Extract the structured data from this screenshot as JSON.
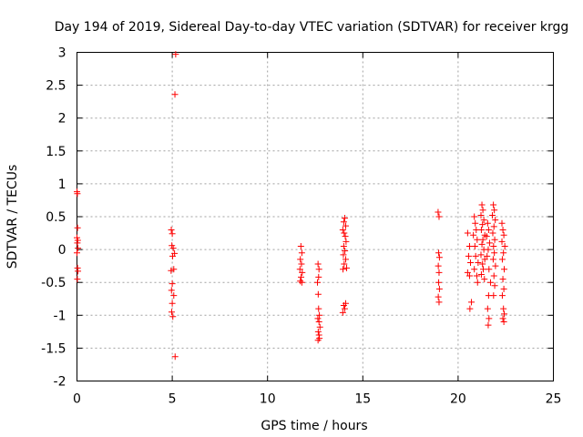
{
  "chart_data": {
    "type": "scatter",
    "title": "Day 194 of 2019, Sidereal Day-to-day VTEC variation (SDTVAR) for receiver krgg",
    "xlabel": "GPS time / hours",
    "ylabel": "SDTVAR / TECUs",
    "xlim": [
      0,
      25
    ],
    "ylim": [
      -2,
      3
    ],
    "xticks": [
      0,
      5,
      10,
      15,
      20,
      25
    ],
    "yticks": [
      -2,
      -1.5,
      -1,
      -0.5,
      0,
      0.5,
      1,
      1.5,
      2,
      2.5,
      3
    ],
    "xtick_labels": [
      "0",
      "5",
      "10",
      "15",
      "20",
      "25"
    ],
    "ytick_labels": [
      "-2",
      "-1.5",
      "-1",
      "-0.5",
      "0",
      "0.5",
      "1",
      "1.5",
      "2",
      "2.5",
      "3"
    ],
    "grid": true,
    "marker": "+",
    "color": "#ff0000",
    "series": [
      {
        "name": "SDTVAR",
        "points": [
          [
            0.0,
            0.88
          ],
          [
            0.02,
            0.85
          ],
          [
            0.03,
            0.33
          ],
          [
            0.0,
            0.18
          ],
          [
            0.04,
            0.14
          ],
          [
            0.02,
            0.1
          ],
          [
            0.05,
            0.02
          ],
          [
            0.0,
            -0.05
          ],
          [
            0.03,
            -0.28
          ],
          [
            0.05,
            -0.33
          ],
          [
            0.02,
            -0.45
          ],
          [
            5.18,
            2.97
          ],
          [
            5.14,
            2.36
          ],
          [
            4.95,
            0.3
          ],
          [
            5.0,
            0.24
          ],
          [
            4.98,
            0.06
          ],
          [
            5.05,
            0.02
          ],
          [
            5.12,
            -0.06
          ],
          [
            5.02,
            -0.1
          ],
          [
            4.94,
            -0.32
          ],
          [
            5.08,
            -0.3
          ],
          [
            5.0,
            -0.52
          ],
          [
            4.96,
            -0.62
          ],
          [
            5.08,
            -0.7
          ],
          [
            5.0,
            -0.82
          ],
          [
            4.97,
            -0.95
          ],
          [
            5.03,
            -1.02
          ],
          [
            5.15,
            -1.63
          ],
          [
            11.75,
            0.05
          ],
          [
            11.8,
            -0.05
          ],
          [
            11.72,
            -0.15
          ],
          [
            11.78,
            -0.22
          ],
          [
            11.7,
            -0.3
          ],
          [
            11.82,
            -0.35
          ],
          [
            11.76,
            -0.42
          ],
          [
            11.72,
            -0.48
          ],
          [
            11.8,
            -0.5
          ],
          [
            12.65,
            -0.22
          ],
          [
            12.7,
            -0.3
          ],
          [
            12.68,
            -0.42
          ],
          [
            12.62,
            -0.5
          ],
          [
            12.66,
            -0.68
          ],
          [
            12.68,
            -0.9
          ],
          [
            12.72,
            -1.0
          ],
          [
            12.64,
            -1.05
          ],
          [
            12.7,
            -1.1
          ],
          [
            12.75,
            -1.18
          ],
          [
            12.66,
            -1.25
          ],
          [
            12.7,
            -1.3
          ],
          [
            12.72,
            -1.35
          ],
          [
            12.65,
            -1.38
          ],
          [
            14.05,
            0.48
          ],
          [
            14.0,
            0.42
          ],
          [
            14.1,
            0.36
          ],
          [
            13.95,
            0.3
          ],
          [
            14.02,
            0.25
          ],
          [
            14.08,
            0.2
          ],
          [
            14.12,
            0.12
          ],
          [
            14.0,
            0.05
          ],
          [
            14.06,
            -0.02
          ],
          [
            13.98,
            -0.08
          ],
          [
            14.1,
            -0.15
          ],
          [
            14.02,
            -0.22
          ],
          [
            14.15,
            -0.28
          ],
          [
            13.96,
            -0.3
          ],
          [
            14.1,
            -0.82
          ],
          [
            14.0,
            -0.85
          ],
          [
            14.05,
            -0.9
          ],
          [
            13.95,
            -0.96
          ],
          [
            18.95,
            0.57
          ],
          [
            19.0,
            0.5
          ],
          [
            18.98,
            -0.05
          ],
          [
            19.02,
            -0.12
          ],
          [
            18.96,
            -0.25
          ],
          [
            19.0,
            -0.35
          ],
          [
            18.98,
            -0.5
          ],
          [
            19.02,
            -0.6
          ],
          [
            18.96,
            -0.72
          ],
          [
            19.0,
            -0.8
          ],
          [
            20.5,
            0.25
          ],
          [
            20.6,
            0.05
          ],
          [
            20.55,
            -0.1
          ],
          [
            20.65,
            -0.2
          ],
          [
            20.5,
            -0.35
          ],
          [
            20.6,
            -0.4
          ],
          [
            20.7,
            -0.8
          ],
          [
            20.62,
            -0.9
          ],
          [
            20.85,
            0.5
          ],
          [
            20.9,
            0.4
          ],
          [
            20.95,
            0.3
          ],
          [
            20.8,
            0.22
          ],
          [
            21.0,
            0.15
          ],
          [
            20.88,
            0.05
          ],
          [
            20.92,
            -0.1
          ],
          [
            21.05,
            -0.2
          ],
          [
            20.85,
            -0.3
          ],
          [
            20.98,
            -0.4
          ],
          [
            21.02,
            -0.5
          ],
          [
            21.25,
            0.68
          ],
          [
            21.3,
            0.6
          ],
          [
            21.2,
            0.52
          ],
          [
            21.35,
            0.45
          ],
          [
            21.28,
            0.38
          ],
          [
            21.22,
            0.3
          ],
          [
            21.4,
            0.22
          ],
          [
            21.3,
            0.15
          ],
          [
            21.25,
            0.08
          ],
          [
            21.35,
            0.0
          ],
          [
            21.2,
            -0.08
          ],
          [
            21.4,
            -0.15
          ],
          [
            21.28,
            -0.22
          ],
          [
            21.32,
            -0.3
          ],
          [
            21.22,
            -0.38
          ],
          [
            21.38,
            -0.45
          ],
          [
            21.55,
            0.4
          ],
          [
            21.6,
            0.3
          ],
          [
            21.5,
            0.2
          ],
          [
            21.65,
            0.1
          ],
          [
            21.58,
            0.0
          ],
          [
            21.52,
            -0.1
          ],
          [
            21.62,
            -0.3
          ],
          [
            21.7,
            -0.5
          ],
          [
            21.6,
            -0.7
          ],
          [
            21.55,
            -0.9
          ],
          [
            21.62,
            -1.05
          ],
          [
            21.58,
            -1.15
          ],
          [
            21.85,
            0.68
          ],
          [
            21.9,
            0.6
          ],
          [
            21.8,
            0.52
          ],
          [
            21.95,
            0.45
          ],
          [
            21.88,
            0.35
          ],
          [
            21.82,
            0.25
          ],
          [
            21.92,
            0.15
          ],
          [
            21.86,
            0.05
          ],
          [
            21.9,
            -0.05
          ],
          [
            21.84,
            -0.15
          ],
          [
            21.96,
            -0.25
          ],
          [
            21.88,
            -0.4
          ],
          [
            21.92,
            -0.55
          ],
          [
            21.86,
            -0.7
          ],
          [
            22.3,
            0.4
          ],
          [
            22.35,
            0.3
          ],
          [
            22.4,
            0.22
          ],
          [
            22.3,
            0.12
          ],
          [
            22.45,
            0.05
          ],
          [
            22.38,
            -0.05
          ],
          [
            22.32,
            -0.15
          ],
          [
            22.42,
            -0.3
          ],
          [
            22.35,
            -0.45
          ],
          [
            22.4,
            -0.6
          ],
          [
            22.32,
            -0.7
          ],
          [
            22.38,
            -0.9
          ],
          [
            22.42,
            -0.98
          ],
          [
            22.35,
            -1.05
          ],
          [
            22.4,
            -1.1
          ]
        ]
      }
    ]
  }
}
